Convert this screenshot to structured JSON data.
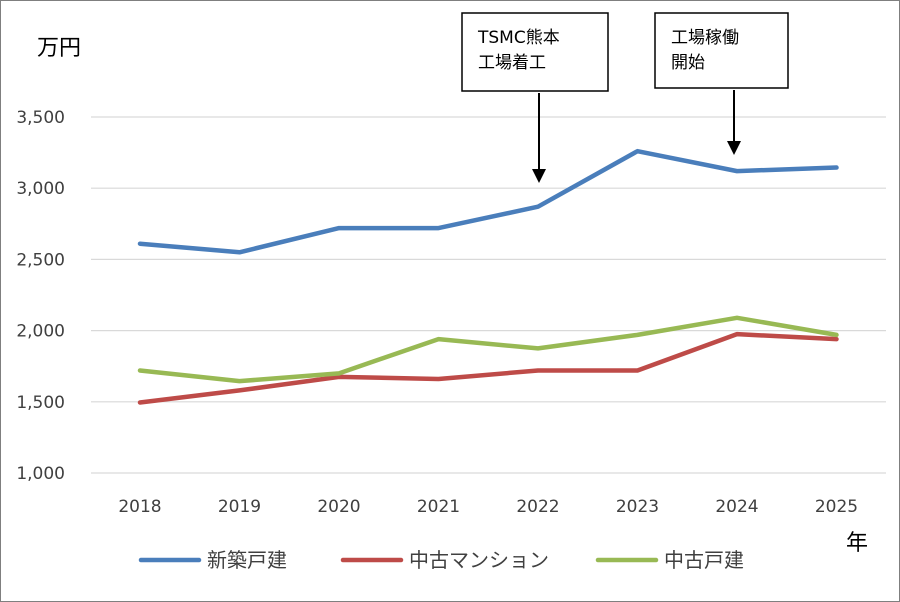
{
  "chart_data": {
    "type": "line",
    "title": "",
    "ylabel": "万円",
    "xlabel": "年",
    "ylim": [
      1000,
      3500
    ],
    "yticks": [
      "1,000",
      "1,500",
      "2,000",
      "2,500",
      "3,000",
      "3,500"
    ],
    "ytick_values": [
      1000,
      1500,
      2000,
      2500,
      3000,
      3500
    ],
    "categories": [
      "2018",
      "2019",
      "2020",
      "2021",
      "2022",
      "2023",
      "2024",
      "2025"
    ],
    "grid": true,
    "legend": "bottom",
    "series": [
      {
        "name": "新築戸建",
        "color": "#4a7ebb",
        "values": [
          2610,
          2550,
          2720,
          2720,
          2870,
          3260,
          3120,
          3145
        ]
      },
      {
        "name": "中古マンション",
        "color": "#be4b48",
        "values": [
          1495,
          1580,
          1675,
          1660,
          1720,
          1720,
          1975,
          1940
        ]
      },
      {
        "name": "中古戸建",
        "color": "#98b954",
        "values": [
          1720,
          1645,
          1700,
          1940,
          1875,
          1970,
          2090,
          1970
        ]
      }
    ],
    "annotations": [
      {
        "category": "2022",
        "lines": [
          "TSMC熊本",
          "工場着工"
        ]
      },
      {
        "category": "2024",
        "lines": [
          "工場稼働",
          "開始"
        ]
      }
    ]
  }
}
